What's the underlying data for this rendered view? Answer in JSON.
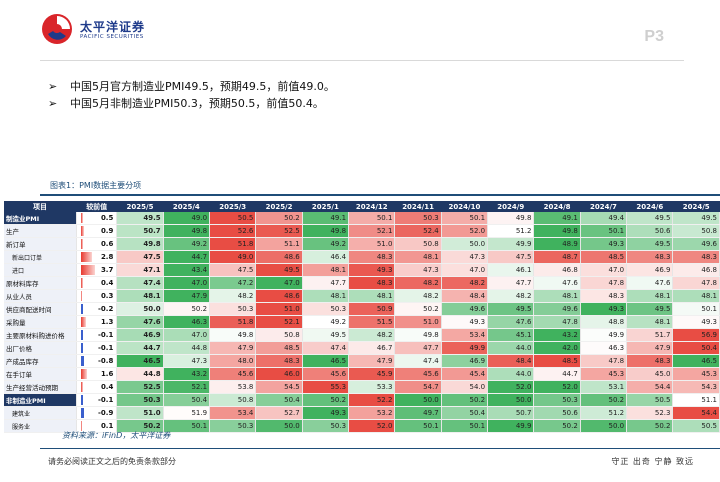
{
  "header": {
    "logo_cn": "太平洋证券",
    "logo_en": "PACIFIC SECURITIES",
    "page": "P3"
  },
  "bullets": [
    "中国5月官方制造业PMI49.5，预期49.5，前值49.0。",
    "中国5月非制造业PMI50.3，预期50.5，前值50.4。"
  ],
  "figure_title": "图表1：PMI数据主要分项",
  "table": {
    "headers": [
      "项目",
      "较前值",
      "2025/5",
      "2025/4",
      "2025/3",
      "2025/2",
      "2025/1",
      "2024/12",
      "2024/11",
      "2024/10",
      "2024/9",
      "2024/8",
      "2024/7",
      "2024/6",
      "2024/5"
    ],
    "rows": [
      {
        "label": "制造业PMI",
        "head": true,
        "delta": "0.5",
        "values": [
          "49.5",
          "49.0",
          "50.5",
          "50.2",
          "49.1",
          "50.1",
          "50.3",
          "50.1",
          "49.8",
          "49.1",
          "49.4",
          "49.5",
          "49.5"
        ]
      },
      {
        "label": "生产",
        "delta": "0.9",
        "values": [
          "50.7",
          "49.8",
          "52.6",
          "52.5",
          "49.8",
          "52.1",
          "52.4",
          "52.0",
          "51.2",
          "49.8",
          "50.1",
          "50.6",
          "50.8"
        ]
      },
      {
        "label": "新订单",
        "delta": "0.6",
        "values": [
          "49.8",
          "49.2",
          "51.8",
          "51.1",
          "49.2",
          "51.0",
          "50.8",
          "50.0",
          "49.9",
          "48.9",
          "49.3",
          "49.5",
          "49.6"
        ]
      },
      {
        "label": "新出口订单",
        "sub": true,
        "delta": "2.8",
        "values": [
          "47.5",
          "44.7",
          "49.0",
          "48.6",
          "46.4",
          "48.3",
          "48.1",
          "47.3",
          "47.5",
          "48.7",
          "48.5",
          "48.3",
          "48.3"
        ]
      },
      {
        "label": "进口",
        "sub": true,
        "delta": "3.7",
        "values": [
          "47.1",
          "43.4",
          "47.5",
          "49.5",
          "48.1",
          "49.3",
          "47.3",
          "47.0",
          "46.1",
          "46.8",
          "47.0",
          "46.9",
          "46.8"
        ]
      },
      {
        "label": "原材料库存",
        "delta": "0.4",
        "values": [
          "47.4",
          "47.0",
          "47.2",
          "47.0",
          "47.7",
          "48.3",
          "48.2",
          "48.2",
          "47.7",
          "47.6",
          "47.8",
          "47.6",
          "47.8"
        ]
      },
      {
        "label": "从业人员",
        "delta": "0.3",
        "values": [
          "48.1",
          "47.9",
          "48.2",
          "48.6",
          "48.1",
          "48.1",
          "48.2",
          "48.4",
          "48.2",
          "48.1",
          "48.3",
          "48.1",
          "48.1"
        ]
      },
      {
        "label": "供应商配送时间",
        "delta": "-0.2",
        "values": [
          "50.0",
          "50.2",
          "50.3",
          "51.0",
          "50.3",
          "50.9",
          "50.2",
          "49.6",
          "49.5",
          "49.6",
          "49.3",
          "49.5",
          "50.1"
        ]
      },
      {
        "label": "采购量",
        "delta": "1.3",
        "values": [
          "47.6",
          "46.3",
          "51.8",
          "52.1",
          "49.2",
          "51.5",
          "51.0",
          "49.3",
          "47.6",
          "47.8",
          "48.8",
          "48.1",
          "49.3"
        ]
      },
      {
        "label": "主要原材料购进价格",
        "delta": "-0.1",
        "values": [
          "46.9",
          "47.0",
          "49.8",
          "50.8",
          "49.5",
          "48.2",
          "49.8",
          "53.4",
          "45.1",
          "43.2",
          "49.9",
          "51.7",
          "56.9"
        ]
      },
      {
        "label": "出厂价格",
        "delta": "-0.1",
        "values": [
          "44.7",
          "44.8",
          "47.9",
          "48.5",
          "47.4",
          "46.7",
          "47.7",
          "49.9",
          "44.0",
          "42.0",
          "46.3",
          "47.9",
          "50.4"
        ]
      },
      {
        "label": "产成品库存",
        "delta": "-0.8",
        "values": [
          "46.5",
          "47.3",
          "48.0",
          "48.3",
          "46.5",
          "47.9",
          "47.4",
          "46.9",
          "48.4",
          "48.5",
          "47.8",
          "48.3",
          "46.5"
        ]
      },
      {
        "label": "在手订单",
        "delta": "1.6",
        "values": [
          "44.8",
          "43.2",
          "45.6",
          "46.0",
          "45.6",
          "45.9",
          "45.6",
          "45.4",
          "44.0",
          "44.7",
          "45.3",
          "45.0",
          "45.3"
        ]
      },
      {
        "label": "生产经营活动预期",
        "delta": "0.4",
        "values": [
          "52.5",
          "52.1",
          "53.8",
          "54.5",
          "55.3",
          "53.3",
          "54.7",
          "54.0",
          "52.0",
          "52.0",
          "53.1",
          "54.4",
          "54.3"
        ]
      },
      {
        "label": "非制造业PMI",
        "head": true,
        "delta": "-0.1",
        "values": [
          "50.3",
          "50.4",
          "50.8",
          "50.4",
          "50.2",
          "52.2",
          "50.0",
          "50.2",
          "50.0",
          "50.3",
          "50.2",
          "50.5",
          "51.1"
        ]
      },
      {
        "label": "建筑业",
        "sub": true,
        "delta": "-0.9",
        "values": [
          "51.0",
          "51.9",
          "53.4",
          "52.7",
          "49.3",
          "53.2",
          "49.7",
          "50.4",
          "50.7",
          "50.6",
          "51.2",
          "52.3",
          "54.4"
        ]
      },
      {
        "label": "服务业",
        "sub": true,
        "delta": "0.1",
        "values": [
          "50.2",
          "50.1",
          "50.3",
          "50.0",
          "50.3",
          "52.0",
          "50.1",
          "50.1",
          "49.9",
          "50.2",
          "50.0",
          "50.2",
          "50.5"
        ]
      }
    ]
  },
  "source": "资料来源：iFinD，太平洋证券",
  "footer": {
    "left": "请务必阅读正文之后的免责条款部分",
    "right": "守正 出奇 宁静 致远"
  },
  "colors": {
    "header_bg": "#1f3864",
    "accent": "#1f4e79",
    "logo_red": "#d9252a",
    "high": "#e8392f",
    "low": "#2bb24c"
  }
}
